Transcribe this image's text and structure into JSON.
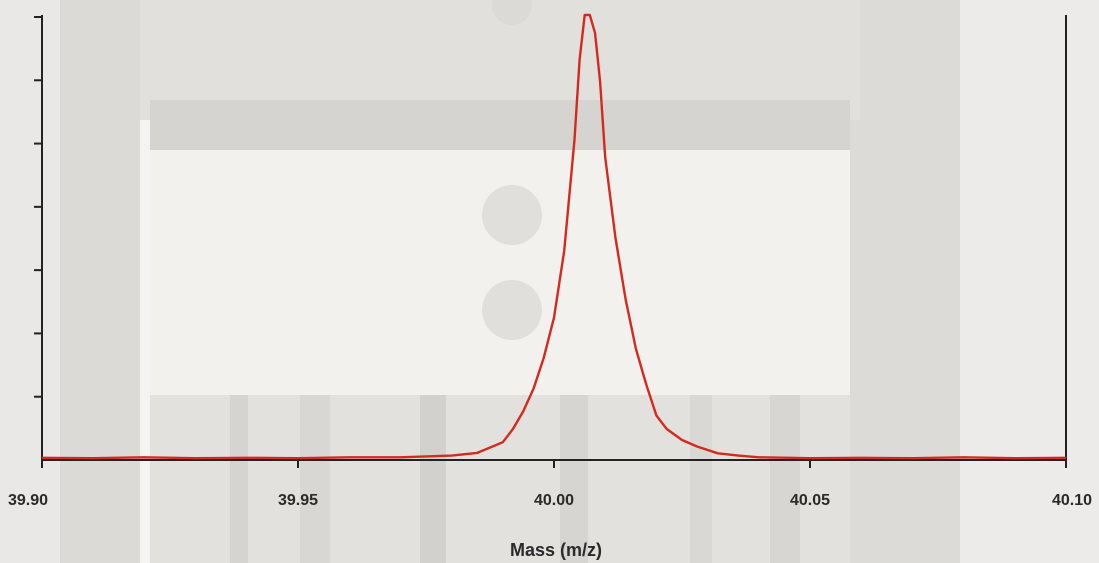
{
  "chart_data": {
    "type": "line",
    "title": "",
    "xlabel": "Mass (m/z)",
    "ylabel": "",
    "xlim": [
      39.9,
      40.1
    ],
    "ylim": [
      0,
      1
    ],
    "x_ticks": [
      "39.90",
      "39.95",
      "40.00",
      "40.05",
      "40.10"
    ],
    "y_tick_count": 7,
    "grid": false,
    "legend": "none",
    "colors": {
      "line": "#d42a1e",
      "axis": "#222222",
      "text": "#2a2a2a"
    },
    "series": [
      {
        "x": [
          39.9,
          39.91,
          39.92,
          39.93,
          39.94,
          39.95,
          39.96,
          39.97,
          39.98,
          39.985,
          39.99,
          39.992,
          39.994,
          39.996,
          39.998,
          40.0,
          40.002,
          40.004,
          40.005,
          40.006,
          40.007,
          40.008,
          40.009,
          40.01,
          40.012,
          40.014,
          40.016,
          40.018,
          40.02,
          40.022,
          40.025,
          40.028,
          40.032,
          40.036,
          40.04,
          40.05,
          40.06,
          40.07,
          40.08,
          40.09,
          40.1
        ],
        "values": [
          0.005,
          0.004,
          0.006,
          0.004,
          0.005,
          0.004,
          0.006,
          0.006,
          0.01,
          0.016,
          0.04,
          0.07,
          0.11,
          0.16,
          0.23,
          0.32,
          0.47,
          0.72,
          0.9,
          1.0,
          1.0,
          0.96,
          0.85,
          0.68,
          0.5,
          0.36,
          0.25,
          0.17,
          0.1,
          0.07,
          0.045,
          0.03,
          0.015,
          0.01,
          0.006,
          0.004,
          0.005,
          0.004,
          0.006,
          0.004,
          0.005
        ]
      }
    ]
  }
}
